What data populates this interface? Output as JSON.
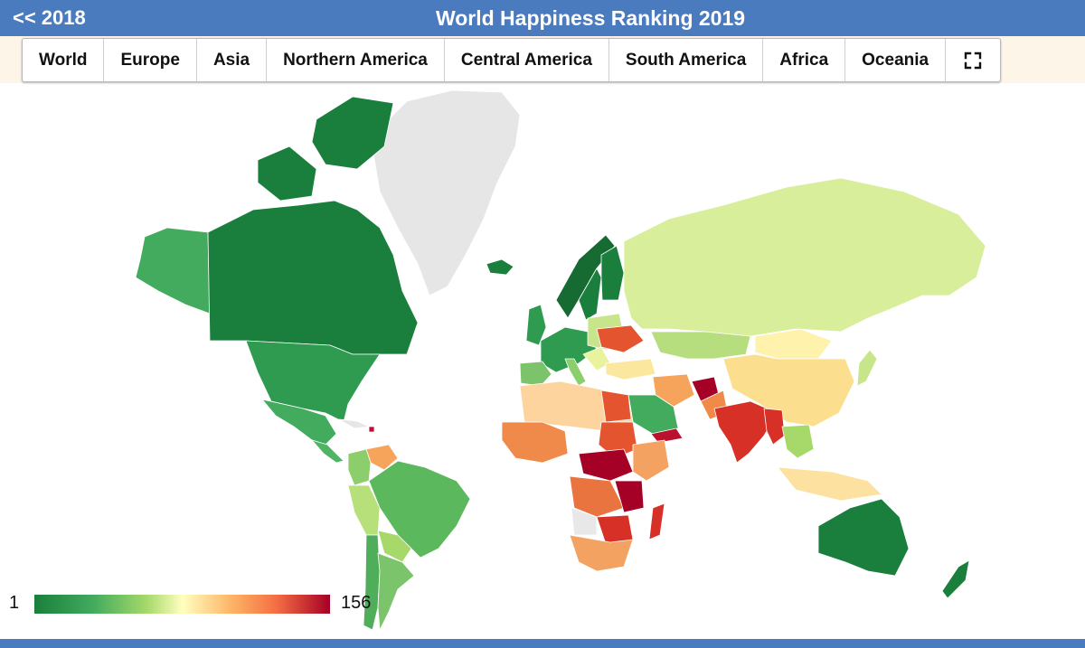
{
  "header": {
    "back_label": "<< 2018",
    "title": "World Happiness Ranking 2019"
  },
  "tabs": [
    {
      "label": "World"
    },
    {
      "label": "Europe"
    },
    {
      "label": "Asia"
    },
    {
      "label": "Northern America"
    },
    {
      "label": "Central America"
    },
    {
      "label": "South America"
    },
    {
      "label": "Africa"
    },
    {
      "label": "Oceania"
    }
  ],
  "fullscreen_icon": "expand-icon",
  "legend": {
    "min": "1",
    "max": "156"
  },
  "colors": {
    "header": "#4a7bbf",
    "tab_bar": "#fdf5e8",
    "no_data": "#e8e8e8",
    "rank_top": "#1a7f3c",
    "rank_mid": "#ffffbf",
    "rank_bottom": "#a50026"
  }
}
